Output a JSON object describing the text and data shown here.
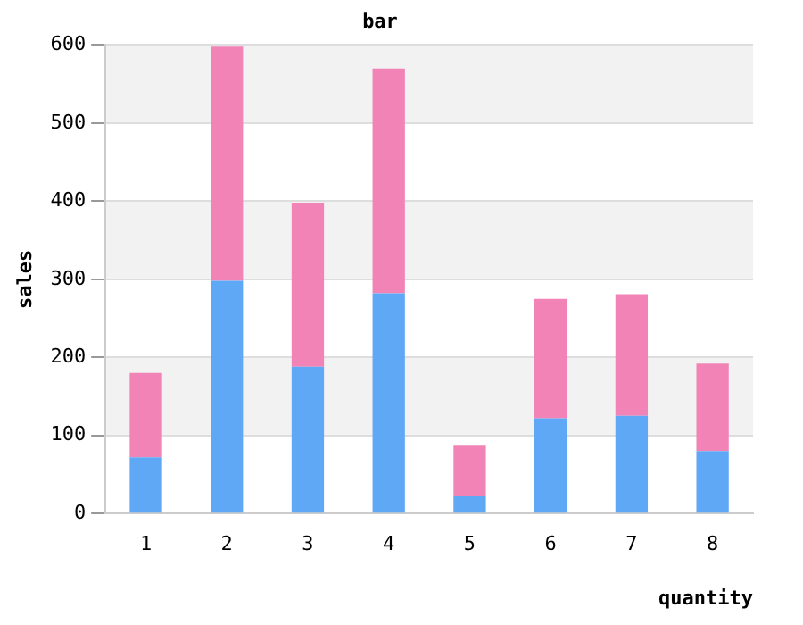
{
  "chart_data": {
    "type": "bar",
    "title": "bar",
    "xlabel": "quantity",
    "ylabel": "sales",
    "categories": [
      "1",
      "2",
      "3",
      "4",
      "5",
      "6",
      "7",
      "8"
    ],
    "stacked": true,
    "series": [
      {
        "color": "#5fa8f5",
        "values": [
          72,
          298,
          188,
          282,
          22,
          122,
          125,
          80
        ]
      },
      {
        "color": "#f283b6",
        "values": [
          108,
          300,
          210,
          288,
          66,
          153,
          156,
          112
        ]
      }
    ],
    "ylim": [
      0,
      600
    ],
    "yticks": [
      0,
      100,
      200,
      300,
      400,
      500,
      600
    ],
    "grid": "y",
    "legend": false
  }
}
